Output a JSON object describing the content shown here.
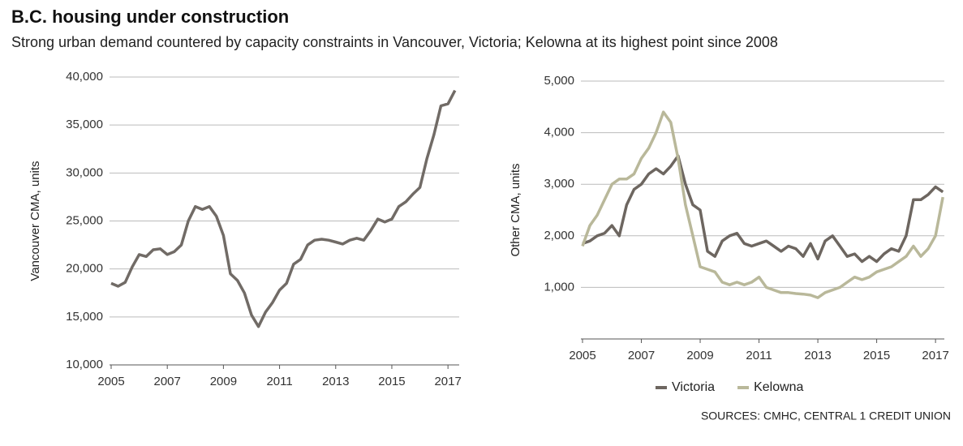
{
  "title": "B.C. housing under construction",
  "subtitle": "Strong urban demand countered by capacity constraints in Vancouver, Victoria; Kelowna at its highest point since 2008",
  "source": "SOURCES: CMHC, CENTRAL 1 CREDIT UNION",
  "chart_data": [
    {
      "type": "line",
      "y_label": "Vancouver CMA, units",
      "x": [
        2005,
        2005.25,
        2005.5,
        2005.75,
        2006,
        2006.25,
        2006.5,
        2006.75,
        2007,
        2007.25,
        2007.5,
        2007.75,
        2008,
        2008.25,
        2008.5,
        2008.75,
        2009,
        2009.25,
        2009.5,
        2009.75,
        2010,
        2010.25,
        2010.5,
        2010.75,
        2011,
        2011.25,
        2011.5,
        2011.75,
        2012,
        2012.25,
        2012.5,
        2012.75,
        2013,
        2013.25,
        2013.5,
        2013.75,
        2014,
        2014.25,
        2014.5,
        2014.75,
        2015,
        2015.25,
        2015.5,
        2015.75,
        2016,
        2016.25,
        2016.5,
        2016.75,
        2017,
        2017.25
      ],
      "series": [
        {
          "name": "Vancouver",
          "color": "#716b66",
          "values": [
            18500,
            18200,
            18600,
            20200,
            21500,
            21300,
            22000,
            22100,
            21500,
            21800,
            22500,
            25000,
            26500,
            26200,
            26500,
            25500,
            23500,
            19500,
            18800,
            17500,
            15200,
            14000,
            15500,
            16500,
            17800,
            18500,
            20500,
            21000,
            22500,
            23000,
            23100,
            23000,
            22800,
            22600,
            23000,
            23200,
            23000,
            24000,
            25200,
            24900,
            25200,
            26500,
            27000,
            27800,
            28500,
            31500,
            34000,
            37000,
            37200,
            38600
          ]
        }
      ],
      "xlim": [
        2005,
        2017.4
      ],
      "xticks": [
        2005,
        2007,
        2009,
        2011,
        2013,
        2015,
        2017
      ],
      "ylim": [
        10000,
        40000
      ],
      "yticks": [
        {
          "value": 10000,
          "label": "10,000"
        },
        {
          "value": 15000,
          "label": "15,000"
        },
        {
          "value": 20000,
          "label": "20,000"
        },
        {
          "value": 25000,
          "label": "25,000"
        },
        {
          "value": 30000,
          "label": "30,000"
        },
        {
          "value": 35000,
          "label": "35,000"
        },
        {
          "value": 40000,
          "label": "40,000"
        }
      ],
      "grid": true
    },
    {
      "type": "line",
      "y_label": "Other CMA, units",
      "x": [
        2005,
        2005.25,
        2005.5,
        2005.75,
        2006,
        2006.25,
        2006.5,
        2006.75,
        2007,
        2007.25,
        2007.5,
        2007.75,
        2008,
        2008.25,
        2008.5,
        2008.75,
        2009,
        2009.25,
        2009.5,
        2009.75,
        2010,
        2010.25,
        2010.5,
        2010.75,
        2011,
        2011.25,
        2011.5,
        2011.75,
        2012,
        2012.25,
        2012.5,
        2012.75,
        2013,
        2013.25,
        2013.5,
        2013.75,
        2014,
        2014.25,
        2014.5,
        2014.75,
        2015,
        2015.25,
        2015.5,
        2015.75,
        2016,
        2016.25,
        2016.5,
        2016.75,
        2017,
        2017.25
      ],
      "series": [
        {
          "name": "Victoria",
          "color": "#6d6660",
          "values": [
            1850,
            1900,
            2000,
            2050,
            2200,
            2000,
            2600,
            2900,
            3000,
            3200,
            3300,
            3200,
            3350,
            3550,
            3000,
            2600,
            2500,
            1700,
            1600,
            1900,
            2000,
            2050,
            1850,
            1800,
            1850,
            1900,
            1800,
            1700,
            1800,
            1750,
            1600,
            1850,
            1550,
            1900,
            2000,
            1800,
            1600,
            1650,
            1500,
            1600,
            1500,
            1650,
            1750,
            1700,
            2000,
            2700,
            2700,
            2800,
            2950,
            2850
          ]
        },
        {
          "name": "Kelowna",
          "color": "#b9b89a",
          "values": [
            1800,
            2200,
            2400,
            2700,
            3000,
            3100,
            3100,
            3200,
            3500,
            3700,
            4000,
            4400,
            4200,
            3500,
            2600,
            2000,
            1400,
            1350,
            1300,
            1100,
            1050,
            1100,
            1050,
            1100,
            1200,
            1000,
            950,
            900,
            900,
            880,
            870,
            850,
            800,
            900,
            950,
            1000,
            1100,
            1200,
            1150,
            1200,
            1300,
            1350,
            1400,
            1500,
            1600,
            1800,
            1600,
            1750,
            2000,
            2750
          ]
        }
      ],
      "xlim": [
        2005,
        2017.3
      ],
      "xticks": [
        2005,
        2007,
        2009,
        2011,
        2013,
        2015,
        2017
      ],
      "ylim": [
        0,
        5000
      ],
      "yticks": [
        {
          "value": 1000,
          "label": "1,000"
        },
        {
          "value": 2000,
          "label": "2,000"
        },
        {
          "value": 3000,
          "label": "3,000"
        },
        {
          "value": 4000,
          "label": "4,000"
        },
        {
          "value": 5000,
          "label": "5,000"
        }
      ],
      "grid": true,
      "legend": "bottom"
    }
  ]
}
